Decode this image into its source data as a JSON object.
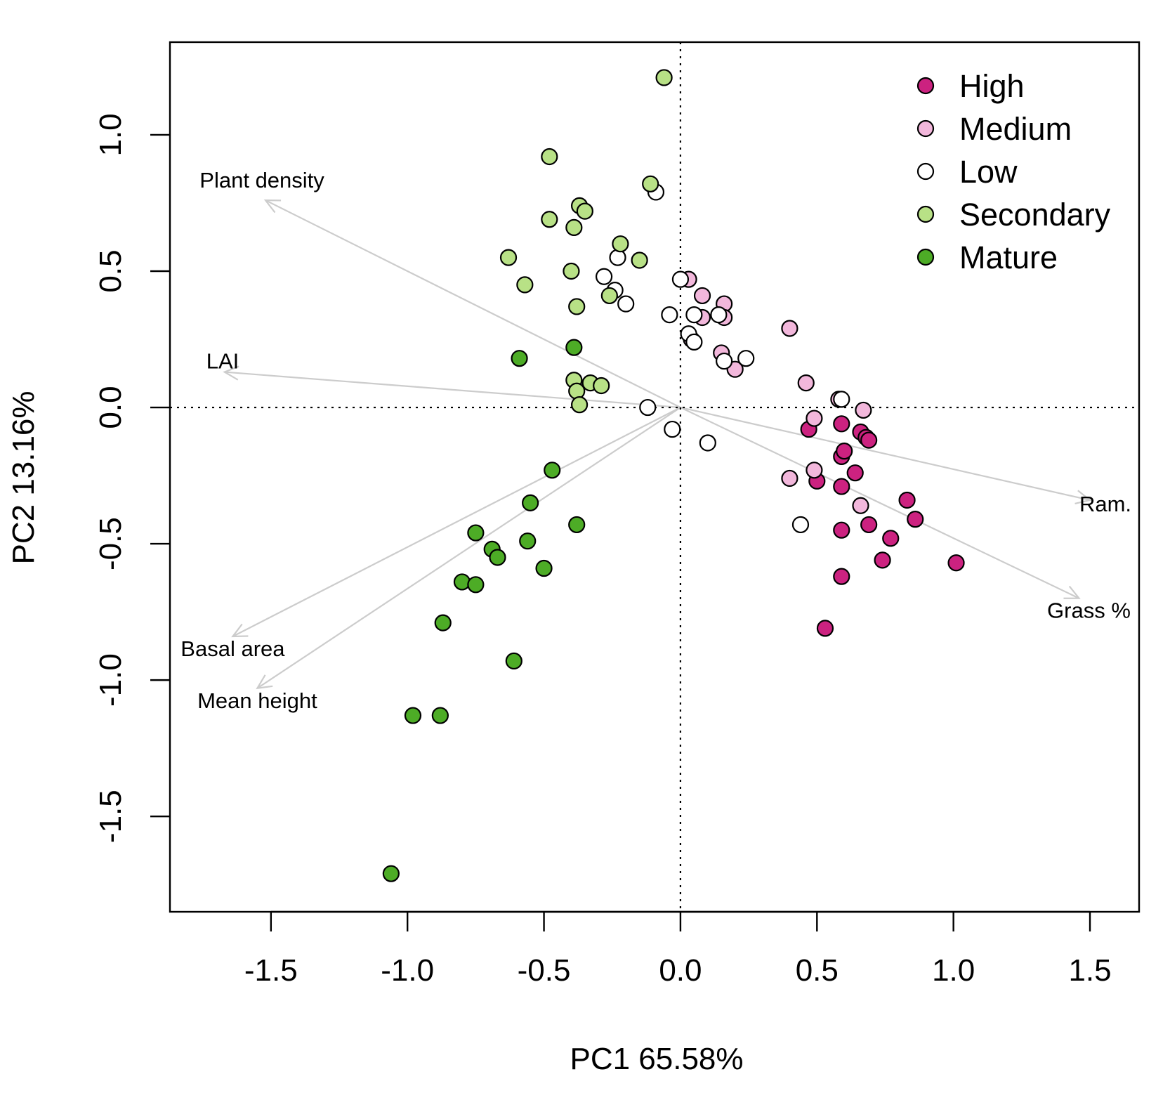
{
  "chart_data": {
    "type": "scatter",
    "title": "",
    "xlabel": "PC1 65.58%",
    "ylabel": "PC2 13.16%",
    "xlim": [
      -1.87,
      1.68
    ],
    "ylim": [
      -1.85,
      1.34
    ],
    "xticks": [
      -1.5,
      -1.0,
      -0.5,
      0.0,
      0.5,
      1.0,
      1.5
    ],
    "xtick_labels": [
      "-1.5",
      "-1.0",
      "-0.5",
      "0.0",
      "0.5",
      "1.0",
      "1.5"
    ],
    "yticks": [
      -1.5,
      -1.0,
      -0.5,
      0.0,
      0.5,
      1.0
    ],
    "ytick_labels": [
      "-1.5",
      "-1.0",
      "-0.5",
      "0.0",
      "0.5",
      "1.0"
    ],
    "grid": false,
    "reference_lines": {
      "x": 0.0,
      "y": 0.0,
      "style": "dotted"
    },
    "legend_position": "top-right",
    "legend": [
      {
        "name": "High",
        "color": "#CC2280"
      },
      {
        "name": "Medium",
        "color": "#F2B7DB"
      },
      {
        "name": "Low",
        "color": "#FFFFFF"
      },
      {
        "name": "Secondary",
        "color": "#B8E186"
      },
      {
        "name": "Mature",
        "color": "#4DAC26"
      }
    ],
    "series": [
      {
        "name": "High",
        "color": "#CC2280",
        "points": [
          [
            0.47,
            -0.08
          ],
          [
            0.5,
            -0.27
          ],
          [
            0.59,
            -0.06
          ],
          [
            0.59,
            -0.18
          ],
          [
            0.6,
            -0.16
          ],
          [
            0.59,
            -0.29
          ],
          [
            0.64,
            -0.24
          ],
          [
            0.66,
            -0.09
          ],
          [
            0.68,
            -0.11
          ],
          [
            0.69,
            -0.12
          ],
          [
            0.59,
            -0.45
          ],
          [
            0.69,
            -0.43
          ],
          [
            0.77,
            -0.48
          ],
          [
            0.74,
            -0.56
          ],
          [
            0.83,
            -0.34
          ],
          [
            0.86,
            -0.41
          ],
          [
            1.01,
            -0.57
          ],
          [
            0.59,
            -0.62
          ],
          [
            0.53,
            -0.81
          ]
        ]
      },
      {
        "name": "Medium",
        "color": "#F2B7DB",
        "points": [
          [
            0.03,
            0.47
          ],
          [
            0.08,
            0.41
          ],
          [
            0.16,
            0.38
          ],
          [
            0.08,
            0.33
          ],
          [
            0.16,
            0.33
          ],
          [
            0.04,
            0.25
          ],
          [
            0.15,
            0.2
          ],
          [
            0.2,
            0.14
          ],
          [
            0.4,
            0.29
          ],
          [
            0.46,
            0.09
          ],
          [
            0.58,
            0.03
          ],
          [
            0.49,
            -0.04
          ],
          [
            0.67,
            -0.01
          ],
          [
            0.4,
            -0.26
          ],
          [
            0.49,
            -0.23
          ],
          [
            0.66,
            -0.36
          ]
        ]
      },
      {
        "name": "Low",
        "color": "#FFFFFF",
        "points": [
          [
            -0.09,
            0.79
          ],
          [
            -0.23,
            0.55
          ],
          [
            -0.28,
            0.48
          ],
          [
            -0.24,
            0.43
          ],
          [
            -0.2,
            0.38
          ],
          [
            0.0,
            0.47
          ],
          [
            -0.04,
            0.34
          ],
          [
            0.05,
            0.34
          ],
          [
            0.14,
            0.34
          ],
          [
            0.03,
            0.27
          ],
          [
            0.05,
            0.24
          ],
          [
            0.16,
            0.17
          ],
          [
            0.24,
            0.18
          ],
          [
            0.59,
            0.03
          ],
          [
            -0.12,
            0.0
          ],
          [
            -0.03,
            -0.08
          ],
          [
            0.1,
            -0.13
          ],
          [
            0.44,
            -0.43
          ]
        ]
      },
      {
        "name": "Secondary",
        "color": "#B8E186",
        "points": [
          [
            -0.06,
            1.21
          ],
          [
            -0.48,
            0.92
          ],
          [
            -0.11,
            0.82
          ],
          [
            -0.37,
            0.74
          ],
          [
            -0.35,
            0.72
          ],
          [
            -0.48,
            0.69
          ],
          [
            -0.39,
            0.66
          ],
          [
            -0.22,
            0.6
          ],
          [
            -0.15,
            0.54
          ],
          [
            -0.63,
            0.55
          ],
          [
            -0.4,
            0.5
          ],
          [
            -0.57,
            0.45
          ],
          [
            -0.26,
            0.41
          ],
          [
            -0.38,
            0.37
          ],
          [
            -0.39,
            0.1
          ],
          [
            -0.33,
            0.09
          ],
          [
            -0.29,
            0.08
          ],
          [
            -0.38,
            0.06
          ],
          [
            -0.37,
            0.01
          ]
        ]
      },
      {
        "name": "Mature",
        "color": "#4DAC26",
        "points": [
          [
            -0.59,
            0.18
          ],
          [
            -0.39,
            0.22
          ],
          [
            -0.47,
            -0.23
          ],
          [
            -0.55,
            -0.35
          ],
          [
            -0.75,
            -0.46
          ],
          [
            -0.56,
            -0.49
          ],
          [
            -0.38,
            -0.43
          ],
          [
            -0.69,
            -0.52
          ],
          [
            -0.67,
            -0.55
          ],
          [
            -0.5,
            -0.59
          ],
          [
            -0.8,
            -0.64
          ],
          [
            -0.75,
            -0.65
          ],
          [
            -0.87,
            -0.79
          ],
          [
            -0.61,
            -0.93
          ],
          [
            -0.98,
            -1.13
          ],
          [
            -0.88,
            -1.13
          ],
          [
            -1.06,
            -1.71
          ]
        ]
      }
    ],
    "loadings": [
      {
        "label": "Plant density",
        "x": -1.52,
        "y": 0.76
      },
      {
        "label": "LAI",
        "x": -1.67,
        "y": 0.13
      },
      {
        "label": "Basal area",
        "x": -1.64,
        "y": -0.84
      },
      {
        "label": "Mean height",
        "x": -1.55,
        "y": -1.03
      },
      {
        "label": "Ram.",
        "x": 1.5,
        "y": -0.34
      },
      {
        "label": "Grass %",
        "x": 1.46,
        "y": -0.7
      }
    ]
  }
}
